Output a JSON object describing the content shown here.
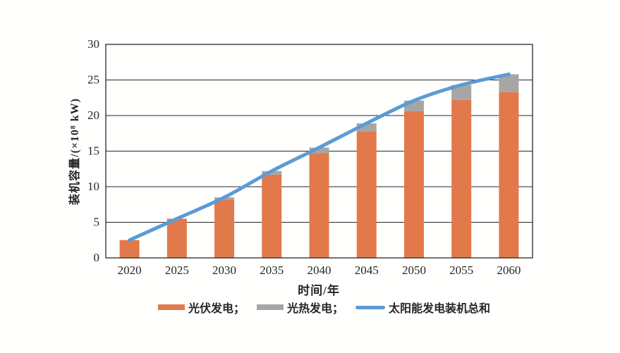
{
  "figure": {
    "background": "#fffffe",
    "axis_color": "#262626",
    "grid_color": "#262626",
    "text_color": "#262626"
  },
  "legend": {
    "items": [
      {
        "label": "光伏发电；",
        "swatch": "bar",
        "color": "#E2794B"
      },
      {
        "label": "光热发电；",
        "swatch": "bar",
        "color": "#A6A6A6"
      },
      {
        "label": "太阳能发电装机总和",
        "swatch": "line",
        "color": "#5B9BD5"
      }
    ]
  },
  "chart_data": {
    "type": "bar",
    "subtype": "stacked-bar-with-line-overlay",
    "title": "",
    "xlabel": "时间/年",
    "ylabel": "装机容量/(×10⁸ kW)",
    "categories": [
      "2020",
      "2025",
      "2030",
      "2035",
      "2040",
      "2045",
      "2050",
      "2055",
      "2060"
    ],
    "series": [
      {
        "name": "光伏发电",
        "render": "bar",
        "stack": true,
        "color": "#E2794B",
        "values": [
          2.5,
          5.5,
          8.2,
          11.7,
          14.7,
          17.8,
          20.6,
          22.2,
          23.3
        ]
      },
      {
        "name": "光热发电",
        "render": "bar",
        "stack": true,
        "color": "#A6A6A6",
        "values": [
          0,
          0,
          0.3,
          0.5,
          0.8,
          1.1,
          1.5,
          2.1,
          2.5
        ]
      },
      {
        "name": "太阳能发电装机总和",
        "render": "line",
        "color": "#5B9BD5",
        "values": [
          2.5,
          5.5,
          8.5,
          12.2,
          15.5,
          18.9,
          22.1,
          24.3,
          25.8
        ]
      }
    ],
    "ylim": [
      0,
      30
    ],
    "ytick_step": 5,
    "yticks": [
      "0",
      "5",
      "10",
      "15",
      "20",
      "25",
      "30"
    ],
    "grid": true,
    "legend_position": "bottom"
  }
}
